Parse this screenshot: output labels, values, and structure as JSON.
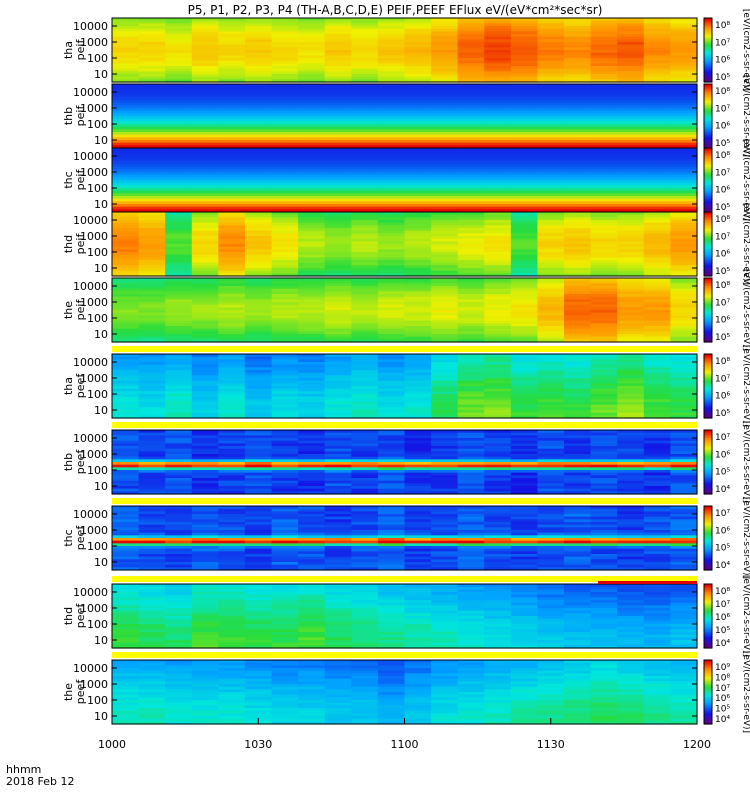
{
  "chart_data": {
    "type": "heatmap",
    "title": "P5, P1, P2, P3, P4 (TH-A,B,C,D,E) PEIF,PEEF EFlux eV/(eV*cm²*sec*sr)",
    "x_axis": {
      "ticks": [
        "1000",
        "1030",
        "1100",
        "1130",
        "1200"
      ],
      "unit_label": "hhmm",
      "date_label": "2018 Feb 12"
    },
    "y_ticks": [
      "10000",
      "1000",
      "100",
      "10"
    ],
    "colorbar_label": "[eV/(cm2-s-sr-eV)]",
    "panels": [
      {
        "probe": "tha",
        "product": "peif",
        "cbar_ticks": [
          "10⁸",
          "10⁷",
          "10⁶",
          "10⁵"
        ],
        "intensity": [
          0.7,
          0.7,
          0.68,
          0.72,
          0.7,
          0.72,
          0.7,
          0.68,
          0.72,
          0.7,
          0.72,
          0.74,
          0.78,
          0.85,
          0.88,
          0.86,
          0.82,
          0.8,
          0.84,
          0.86,
          0.8,
          0.78
        ]
      },
      {
        "probe": "thb",
        "product": "peif",
        "cbar_ticks": [
          "10⁸",
          "10⁷",
          "10⁶",
          "10⁵"
        ],
        "intensity": [
          0.25,
          0.25,
          0.24,
          0.26,
          0.25,
          0.25,
          0.26,
          0.25,
          0.24,
          0.25,
          0.26,
          0.25,
          0.25,
          0.24,
          0.25,
          0.26,
          0.25,
          0.25,
          0.24,
          0.25,
          0.26,
          0.25
        ]
      },
      {
        "probe": "thc",
        "product": "peif",
        "cbar_ticks": [
          "10⁸",
          "10⁷",
          "10⁶",
          "10⁵"
        ],
        "intensity": [
          0.26,
          0.25,
          0.24,
          0.26,
          0.25,
          0.27,
          0.24,
          0.25,
          0.26,
          0.25,
          0.24,
          0.26,
          0.25,
          0.26,
          0.25,
          0.24,
          0.26,
          0.25,
          0.3,
          0.26,
          0.25,
          0.26
        ]
      },
      {
        "probe": "thd",
        "product": "peif",
        "cbar_ticks": [
          "10⁸",
          "10⁷",
          "10⁶",
          "10⁵"
        ],
        "intensity": [
          0.82,
          0.78,
          0.55,
          0.7,
          0.8,
          0.72,
          0.68,
          0.62,
          0.6,
          0.62,
          0.6,
          0.62,
          0.64,
          0.66,
          0.68,
          0.55,
          0.7,
          0.72,
          0.7,
          0.7,
          0.74,
          0.78
        ]
      },
      {
        "probe": "the",
        "product": "peif",
        "cbar_ticks": [
          "10⁸",
          "10⁷",
          "10⁶",
          "10⁵"
        ],
        "intensity": [
          0.58,
          0.58,
          0.6,
          0.6,
          0.62,
          0.6,
          0.62,
          0.62,
          0.64,
          0.62,
          0.64,
          0.64,
          0.66,
          0.64,
          0.66,
          0.68,
          0.74,
          0.84,
          0.84,
          0.78,
          0.78,
          0.7
        ]
      },
      {
        "probe": "tha",
        "product": "peef",
        "cbar_ticks": [
          "10⁸",
          "10⁷",
          "10⁶",
          "10⁵"
        ],
        "intensity": [
          0.38,
          0.36,
          0.4,
          0.34,
          0.38,
          0.32,
          0.36,
          0.34,
          0.38,
          0.4,
          0.36,
          0.38,
          0.48,
          0.55,
          0.56,
          0.5,
          0.52,
          0.5,
          0.54,
          0.58,
          0.52,
          0.5
        ]
      },
      {
        "probe": "thb",
        "product": "peef",
        "cbar_ticks": [
          "10⁷",
          "10⁶",
          "10⁵",
          "10⁴"
        ],
        "intensity": [
          0.22,
          0.2,
          0.22,
          0.18,
          0.2,
          0.22,
          0.2,
          0.18,
          0.22,
          0.2,
          0.22,
          0.18,
          0.2,
          0.22,
          0.2,
          0.18,
          0.22,
          0.2,
          0.22,
          0.2,
          0.18,
          0.22
        ]
      },
      {
        "probe": "thc",
        "product": "peef",
        "cbar_ticks": [
          "10⁷",
          "10⁶",
          "10⁵",
          "10⁴"
        ],
        "intensity": [
          0.24,
          0.22,
          0.2,
          0.24,
          0.22,
          0.2,
          0.24,
          0.22,
          0.2,
          0.22,
          0.24,
          0.2,
          0.22,
          0.24,
          0.22,
          0.2,
          0.22,
          0.24,
          0.22,
          0.2,
          0.22,
          0.24
        ]
      },
      {
        "probe": "thd",
        "product": "peef",
        "cbar_ticks": [
          "10⁸",
          "10⁷",
          "10⁶",
          "10⁵",
          "10⁴"
        ],
        "intensity": [
          0.5,
          0.48,
          0.46,
          0.52,
          0.52,
          0.5,
          0.5,
          0.52,
          0.48,
          0.46,
          0.44,
          0.42,
          0.4,
          0.38,
          0.36,
          0.34,
          0.32,
          0.3,
          0.3,
          0.28,
          0.28,
          0.3
        ]
      },
      {
        "probe": "the",
        "product": "peef",
        "cbar_ticks": [
          "10⁹",
          "10⁸",
          "10⁷",
          "10⁶",
          "10⁵",
          "10⁴"
        ],
        "intensity": [
          0.4,
          0.4,
          0.38,
          0.38,
          0.38,
          0.36,
          0.34,
          0.34,
          0.32,
          0.32,
          0.28,
          0.32,
          0.36,
          0.38,
          0.4,
          0.42,
          0.44,
          0.46,
          0.48,
          0.46,
          0.44,
          0.42
        ]
      }
    ],
    "x_range": [
      "1000",
      "1200"
    ],
    "y_scale": "log"
  }
}
